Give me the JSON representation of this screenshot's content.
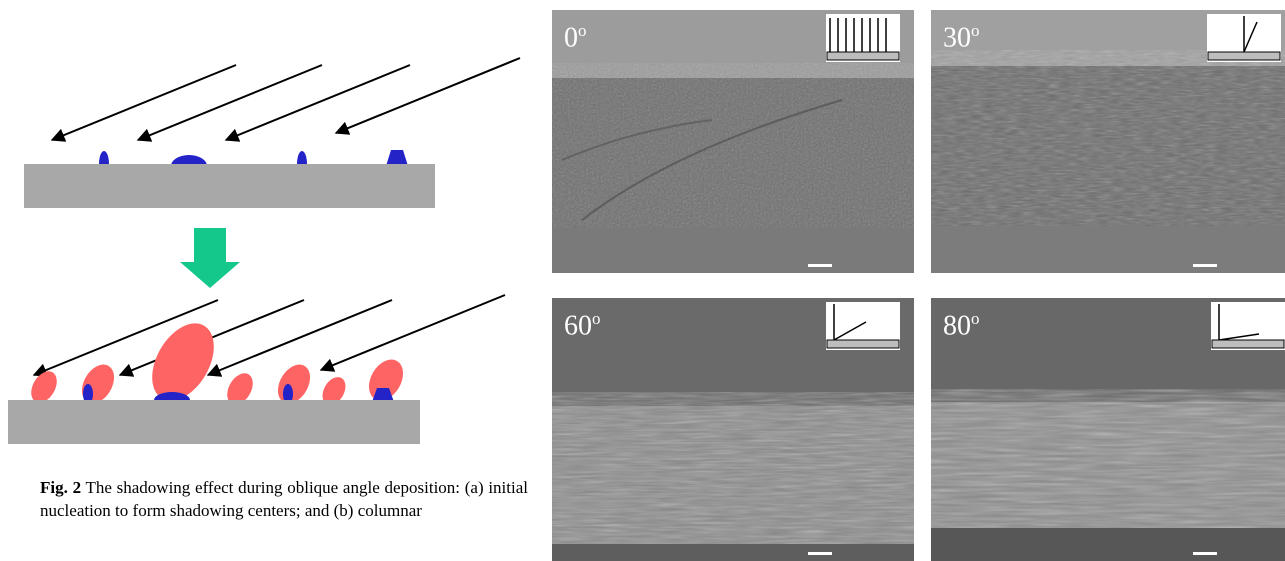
{
  "caption": {
    "label": "Fig. 2",
    "text": " The shadowing effect during oblique angle deposition: (a) initial nucleation to form shadowing centers; and (b) columnar"
  },
  "panels": [
    {
      "angle": "0",
      "unit": "o"
    },
    {
      "angle": "30",
      "unit": "o"
    },
    {
      "angle": "60",
      "unit": "o"
    },
    {
      "angle": "80",
      "unit": "o"
    }
  ],
  "colors": {
    "substrate": "#a8a8a8",
    "nucleus": "#2323c8",
    "column": "#ff6464",
    "transition_arrow": "#14c88c",
    "sem_background": "#6e6e6e"
  }
}
